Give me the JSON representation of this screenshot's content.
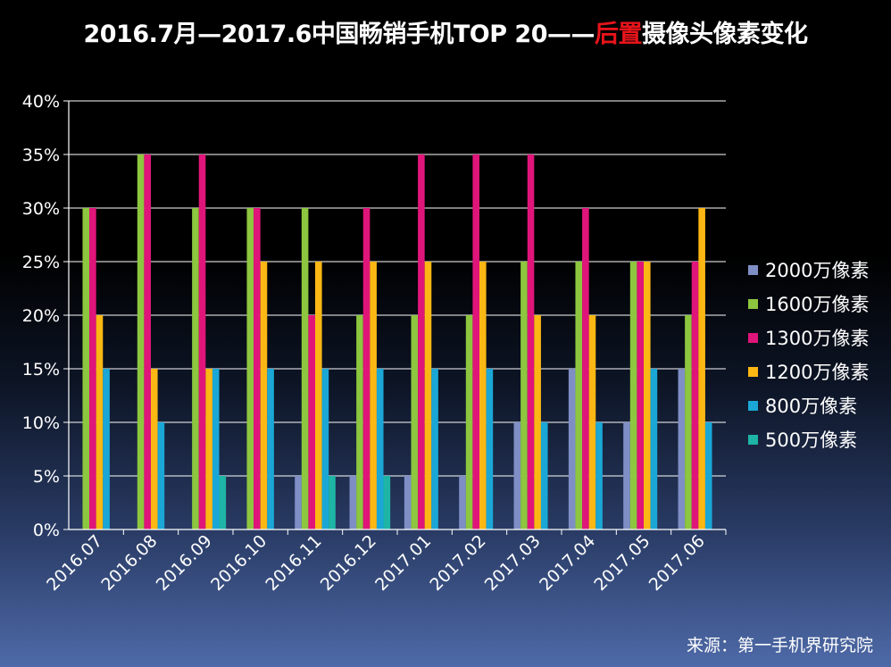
{
  "title": {
    "part1": "2016.7月—2017.6中国畅销手机TOP 20——",
    "highlight": "后置",
    "part2": "摄像头像素变化"
  },
  "source_text": "来源：第一手机界研究院",
  "colors": {
    "s2000": "#7f8fc6",
    "s1600": "#8dc63f",
    "s1300": "#e0157a",
    "s1200": "#fbb713",
    "s800": "#1aa7d6",
    "s500": "#1fb5a6",
    "grid": "#ffffff",
    "title_highlight": "#e8141b"
  },
  "chart_data": {
    "type": "bar",
    "title": "2016.7月—2017.6中国畅销手机TOP 20——后置摄像头像素变化",
    "xlabel": "",
    "ylabel": "",
    "ylim": [
      0,
      40
    ],
    "yticks": [
      "0%",
      "5%",
      "10%",
      "15%",
      "20%",
      "25%",
      "30%",
      "35%",
      "40%"
    ],
    "grid": true,
    "legend_position": "right",
    "categories": [
      "2016.07",
      "2016.08",
      "2016.09",
      "2016.10",
      "2016.11",
      "2016.12",
      "2017.01",
      "2017.02",
      "2017.03",
      "2017.04",
      "2017.05",
      "2017.06"
    ],
    "series": [
      {
        "name": "2000万像素",
        "color_key": "s2000",
        "values": [
          0,
          0,
          0,
          0,
          5,
          5,
          5,
          5,
          10,
          15,
          10,
          15
        ]
      },
      {
        "name": "1600万像素",
        "color_key": "s1600",
        "values": [
          30,
          35,
          30,
          30,
          30,
          20,
          20,
          20,
          25,
          25,
          25,
          20
        ]
      },
      {
        "name": "1300万像素",
        "color_key": "s1300",
        "values": [
          30,
          35,
          35,
          30,
          20,
          30,
          35,
          35,
          35,
          30,
          25,
          25
        ]
      },
      {
        "name": "1200万像素",
        "color_key": "s1200",
        "values": [
          20,
          15,
          15,
          25,
          25,
          25,
          25,
          25,
          20,
          20,
          25,
          30
        ]
      },
      {
        "name": "800万像素",
        "color_key": "s800",
        "values": [
          15,
          10,
          15,
          15,
          15,
          15,
          15,
          15,
          10,
          10,
          15,
          10
        ]
      },
      {
        "name": "500万像素",
        "color_key": "s500",
        "values": [
          0,
          0,
          5,
          0,
          5,
          5,
          0,
          0,
          0,
          0,
          0,
          0
        ]
      }
    ]
  }
}
